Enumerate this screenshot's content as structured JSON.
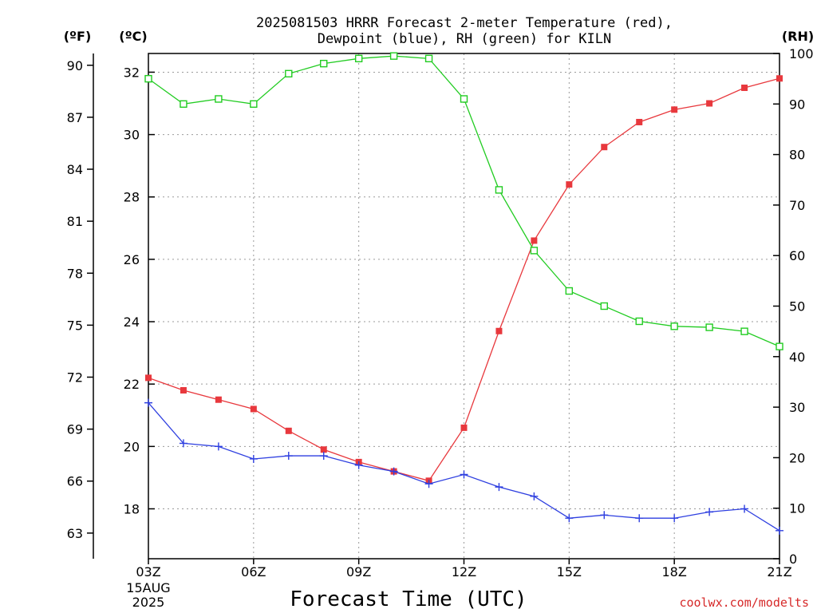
{
  "chart_data": {
    "type": "line",
    "title": [
      "2025081503 HRRR Forecast 2-meter Temperature (red),",
      "Dewpoint (blue), RH (green) for KILN"
    ],
    "xlabel": "Forecast Time (UTC)",
    "x_ticks": [
      "03Z",
      "06Z",
      "09Z",
      "12Z",
      "15Z",
      "18Z",
      "21Z"
    ],
    "x_date": [
      "15AUG",
      "2025"
    ],
    "x_hours": [
      3,
      4,
      5,
      6,
      7,
      8,
      9,
      10,
      11,
      12,
      13,
      14,
      15,
      16,
      17,
      18,
      19,
      20,
      21
    ],
    "left_axis_f": {
      "label": "(ºF)",
      "ticks": [
        63,
        66,
        69,
        72,
        75,
        78,
        81,
        84,
        87,
        90
      ]
    },
    "left_axis_c": {
      "label": "(ºC)",
      "ticks": [
        18,
        20,
        22,
        24,
        26,
        28,
        30,
        32
      ],
      "range": [
        16.4,
        32.6
      ]
    },
    "right_axis": {
      "label": "(RH)",
      "ticks": [
        0,
        10,
        20,
        30,
        40,
        50,
        60,
        70,
        80,
        90,
        100
      ],
      "range": [
        0,
        100
      ]
    },
    "grid": true,
    "series": [
      {
        "name": "Temperature",
        "axis": "c",
        "color": "#e8383d",
        "marker": "filled-square",
        "values": [
          22.2,
          21.8,
          21.5,
          21.2,
          20.5,
          19.9,
          19.5,
          19.2,
          18.9,
          20.6,
          23.7,
          26.6,
          28.4,
          29.6,
          30.4,
          30.8,
          31.0,
          31.5,
          31.8
        ]
      },
      {
        "name": "Dewpoint",
        "axis": "c",
        "color": "#2e3fe0",
        "marker": "plus",
        "values": [
          21.4,
          20.1,
          20.0,
          19.6,
          19.7,
          19.7,
          19.4,
          19.2,
          18.8,
          19.1,
          18.7,
          18.4,
          17.7,
          17.8,
          17.7,
          17.7,
          17.9,
          18.0,
          17.3
        ]
      },
      {
        "name": "RH",
        "axis": "rh",
        "color": "#22cc22",
        "marker": "open-square",
        "values": [
          95,
          90,
          91,
          90,
          96,
          98,
          99,
          99.5,
          99,
          91,
          73,
          61,
          53,
          50,
          47,
          46,
          45.8,
          45,
          42
        ]
      }
    ]
  },
  "credit": "coolwx.com/modelts"
}
